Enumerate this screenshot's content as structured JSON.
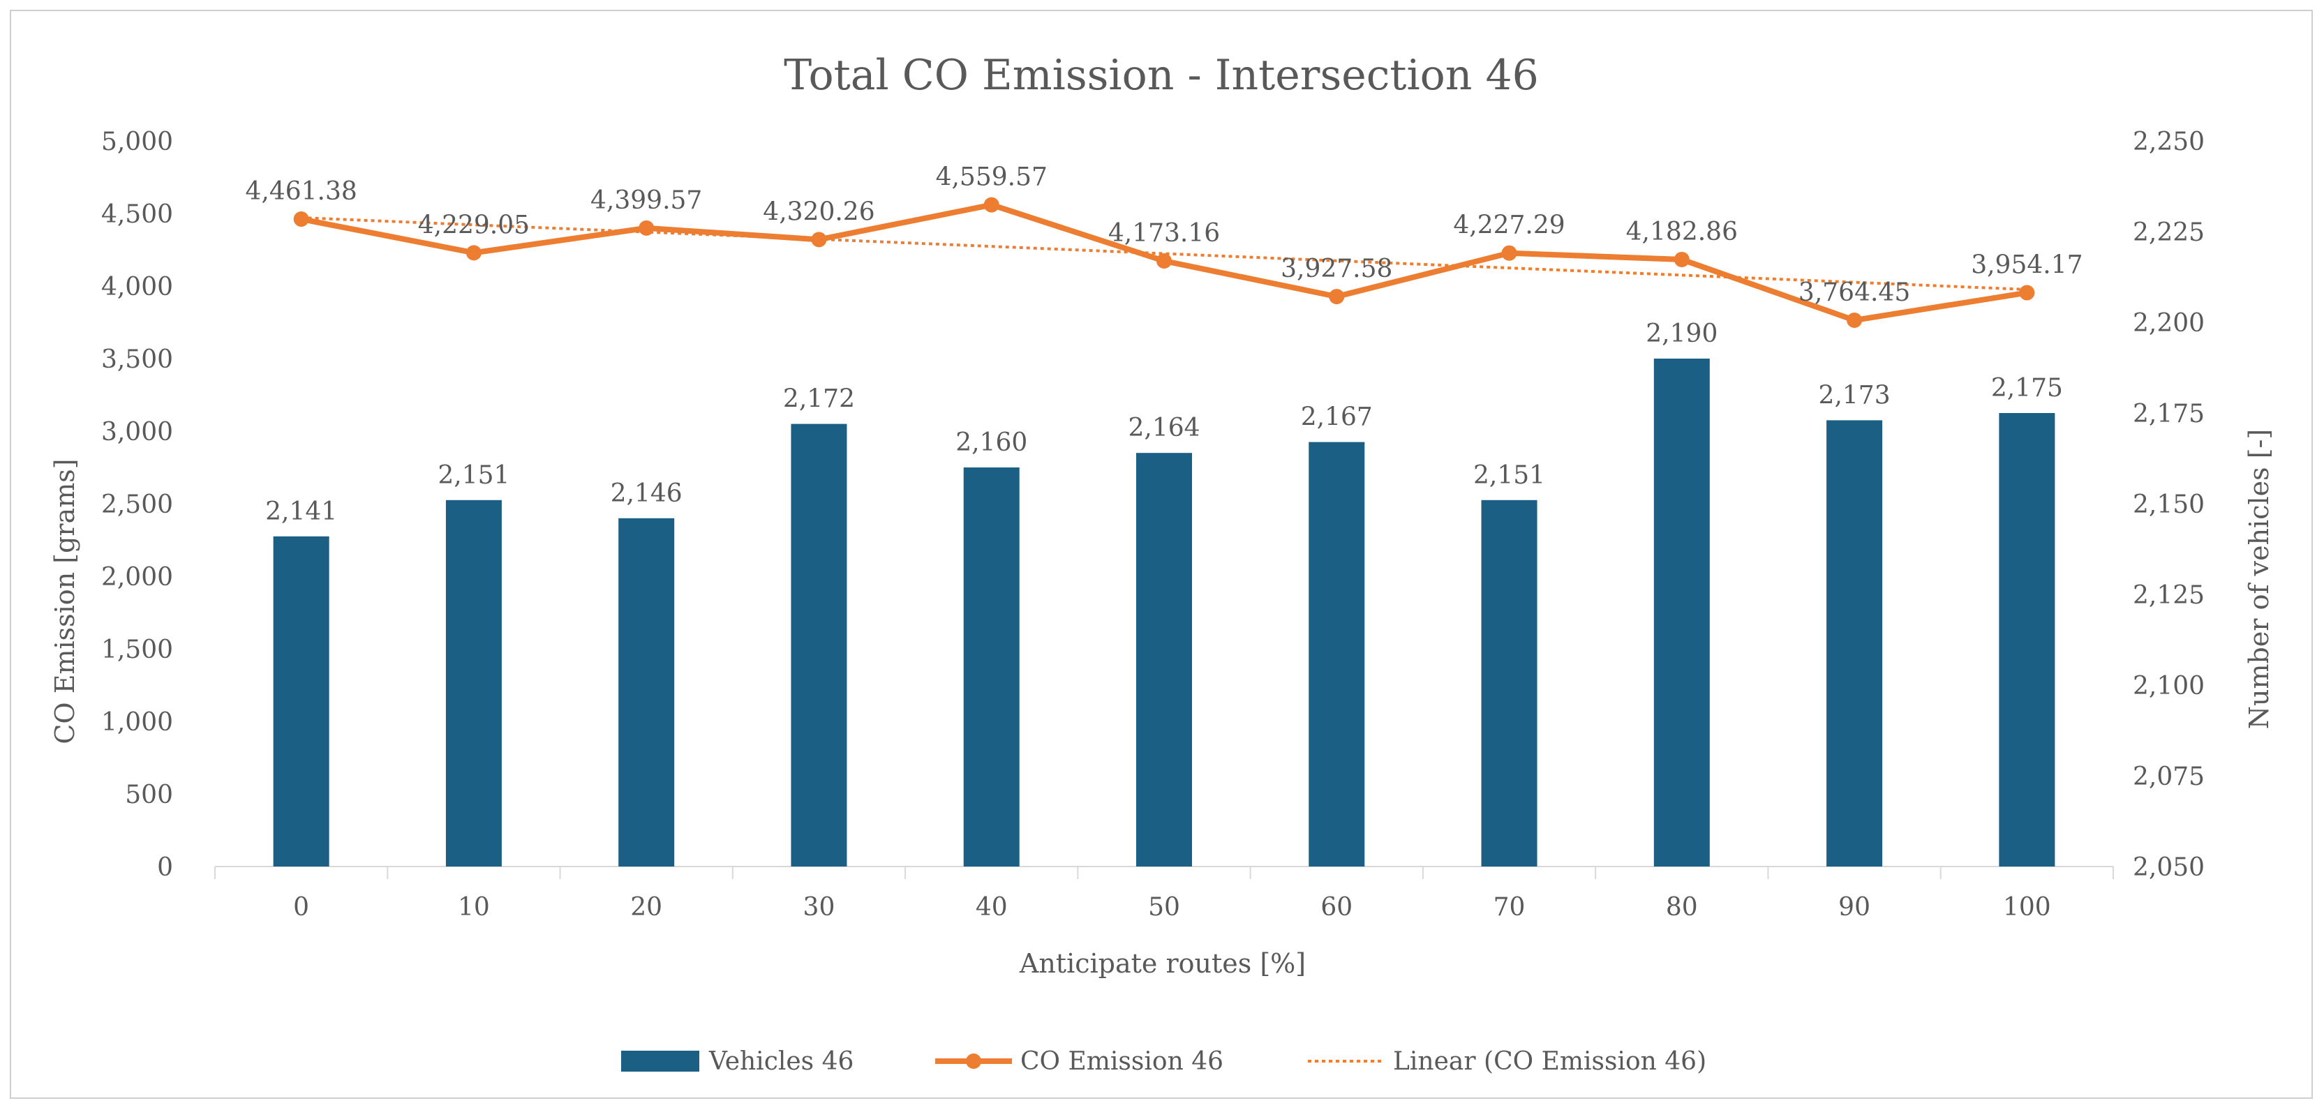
{
  "chart_data": {
    "type": "bar",
    "title": "Total CO Emission - Intersection 46",
    "xlabel": "Anticipate routes [%]",
    "ylabel_left": "CO Emission [grams]",
    "ylabel_right": "Number of vehicles [-]",
    "categories": [
      "0",
      "10",
      "20",
      "30",
      "40",
      "50",
      "60",
      "70",
      "80",
      "90",
      "100"
    ],
    "left_axis": {
      "ylim": [
        0,
        5000
      ],
      "ticks": [
        "0",
        "500",
        "1,000",
        "1,500",
        "2,000",
        "2,500",
        "3,000",
        "3,500",
        "4,000",
        "4,500",
        "5,000"
      ]
    },
    "right_axis": {
      "ylim": [
        2050,
        2250
      ],
      "ticks": [
        "2,050",
        "2,075",
        "2,100",
        "2,125",
        "2,150",
        "2,175",
        "2,200",
        "2,225",
        "2,250"
      ]
    },
    "series": [
      {
        "name": "Vehicles 46",
        "type": "bar",
        "axis": "right",
        "color": "#1b5f84",
        "values": [
          2141,
          2151,
          2146,
          2172,
          2160,
          2164,
          2167,
          2151,
          2190,
          2173,
          2175
        ],
        "labels": [
          "2,141",
          "2,151",
          "2,146",
          "2,172",
          "2,160",
          "2,164",
          "2,167",
          "2,151",
          "2,190",
          "2,173",
          "2,175"
        ]
      },
      {
        "name": "CO Emission 46",
        "type": "line",
        "axis": "left",
        "color": "#ed7d31",
        "values": [
          4461.38,
          4229.05,
          4399.57,
          4320.26,
          4559.57,
          4173.16,
          3927.58,
          4227.29,
          4182.86,
          3764.45,
          3954.17
        ],
        "labels": [
          "4,461.38",
          "4,229.05",
          "4,399.57",
          "4,320.26",
          "4,559.57",
          "4,173.16",
          "3,927.58",
          "4,227.29",
          "4,182.86",
          "3,764.45",
          "3,954.17"
        ]
      },
      {
        "name": "Linear (CO Emission 46)",
        "type": "trendline",
        "axis": "left",
        "color": "#ed7d31",
        "values": [
          4471.2,
          4421.7,
          4372.2,
          4322.7,
          4273.2,
          4223.7,
          4174.2,
          4124.7,
          4075.2,
          4025.7,
          3976.2
        ]
      }
    ],
    "legend_position": "bottom",
    "grid": false
  }
}
